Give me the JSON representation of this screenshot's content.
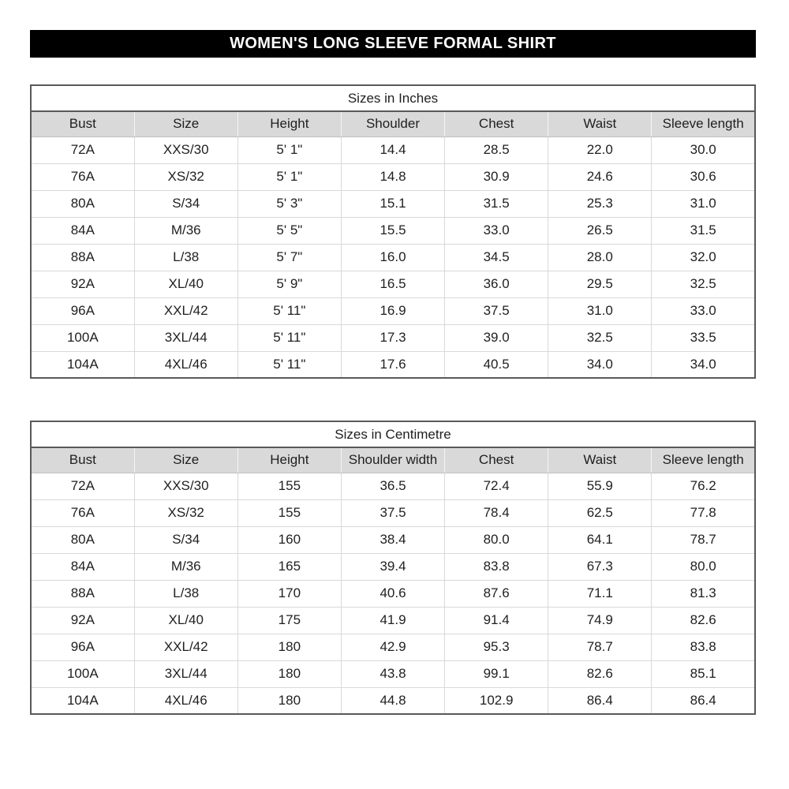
{
  "banner": {
    "title": "WOMEN'S LONG SLEEVE FORMAL SHIRT"
  },
  "tables": [
    {
      "title": "Sizes in Inches",
      "columns": [
        "Bust",
        "Size",
        "Height",
        "Shoulder",
        "Chest",
        "Waist",
        "Sleeve length"
      ],
      "rows": [
        [
          "72A",
          "XXS/30",
          "5' 1\"",
          "14.4",
          "28.5",
          "22.0",
          "30.0"
        ],
        [
          "76A",
          "XS/32",
          "5' 1\"",
          "14.8",
          "30.9",
          "24.6",
          "30.6"
        ],
        [
          "80A",
          "S/34",
          "5' 3\"",
          "15.1",
          "31.5",
          "25.3",
          "31.0"
        ],
        [
          "84A",
          "M/36",
          "5' 5\"",
          "15.5",
          "33.0",
          "26.5",
          "31.5"
        ],
        [
          "88A",
          "L/38",
          "5' 7\"",
          "16.0",
          "34.5",
          "28.0",
          "32.0"
        ],
        [
          "92A",
          "XL/40",
          "5' 9\"",
          "16.5",
          "36.0",
          "29.5",
          "32.5"
        ],
        [
          "96A",
          "XXL/42",
          "5' 11\"",
          "16.9",
          "37.5",
          "31.0",
          "33.0"
        ],
        [
          "100A",
          "3XL/44",
          "5' 11\"",
          "17.3",
          "39.0",
          "32.5",
          "33.5"
        ],
        [
          "104A",
          "4XL/46",
          "5' 11\"",
          "17.6",
          "40.5",
          "34.0",
          "34.0"
        ]
      ]
    },
    {
      "title": "Sizes in Centimetre",
      "columns": [
        "Bust",
        "Size",
        "Height",
        "Shoulder width",
        "Chest",
        "Waist",
        "Sleeve length"
      ],
      "rows": [
        [
          "72A",
          "XXS/30",
          "155",
          "36.5",
          "72.4",
          "55.9",
          "76.2"
        ],
        [
          "76A",
          "XS/32",
          "155",
          "37.5",
          "78.4",
          "62.5",
          "77.8"
        ],
        [
          "80A",
          "S/34",
          "160",
          "38.4",
          "80.0",
          "64.1",
          "78.7"
        ],
        [
          "84A",
          "M/36",
          "165",
          "39.4",
          "83.8",
          "67.3",
          "80.0"
        ],
        [
          "88A",
          "L/38",
          "170",
          "40.6",
          "87.6",
          "71.1",
          "81.3"
        ],
        [
          "92A",
          "XL/40",
          "175",
          "41.9",
          "91.4",
          "74.9",
          "82.6"
        ],
        [
          "96A",
          "XXL/42",
          "180",
          "42.9",
          "95.3",
          "78.7",
          "83.8"
        ],
        [
          "100A",
          "3XL/44",
          "180",
          "43.8",
          "99.1",
          "82.6",
          "85.1"
        ],
        [
          "104A",
          "4XL/46",
          "180",
          "44.8",
          "102.9",
          "86.4",
          "86.4"
        ]
      ]
    }
  ],
  "colors": {
    "banner_bg": "#000000",
    "banner_text": "#ffffff",
    "header_row_bg": "#d9d9d9",
    "outer_border": "#595959",
    "cell_border": "#d9d9d9",
    "text": "#1f1f1f",
    "page_bg": "#ffffff"
  }
}
